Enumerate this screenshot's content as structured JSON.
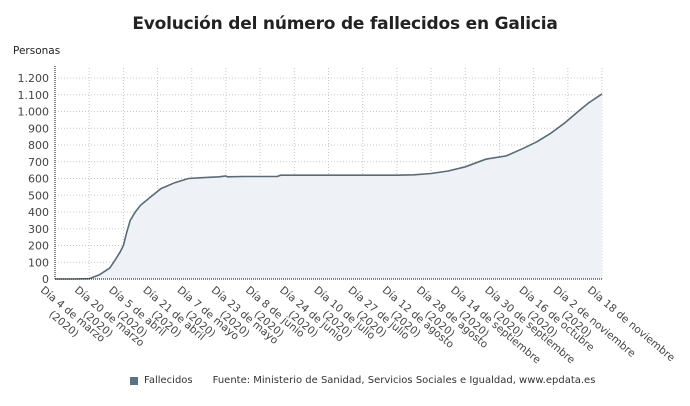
{
  "header": {
    "title": "Evolución del número de fallecidos en Galicia",
    "y_unit": "Personas"
  },
  "legend": {
    "series_label": "Fallecidos",
    "series_color": "#5b7186",
    "source": "Fuente: Ministerio de Sanidad, Servicios Sociales e Igualdad, www.epdata.es"
  },
  "colors": {
    "line": "#5a6b76",
    "fill": "#eef2f6",
    "grid": "#c8c8c8",
    "axis": "#333333"
  },
  "chart_data": {
    "type": "area",
    "title": "Evolución del número de fallecidos en Galicia",
    "xlabel": "",
    "ylabel": "Personas",
    "ylim": [
      0,
      1200
    ],
    "yticks": [
      0,
      100,
      200,
      300,
      400,
      500,
      600,
      700,
      800,
      900,
      1000,
      1100,
      1200
    ],
    "ytick_labels": [
      "0",
      "100",
      "200",
      "300",
      "400",
      "500",
      "600",
      "700",
      "800",
      "900",
      "1.000",
      "1.100",
      "1.200"
    ],
    "grid": true,
    "legend_position": "bottom",
    "categories": [
      "Día 4 de marzo (2020)",
      "Día 20 de marzo (2020)",
      "Día 5 de abril (2020)",
      "Día 21 de abril (2020)",
      "Día 7 de mayo (2020)",
      "Día 23 de mayo (2020)",
      "Día 8 de junio (2020)",
      "Día 24 de junio (2020)",
      "Día 10 de julio (2020)",
      "Día 27 de julio (2020)",
      "Día 12 de agosto (2020)",
      "Día 28 de agosto (2020)",
      "Día 14 de septiembre (2020)",
      "Día 30 de septiembre (2020)",
      "Día 16 de octubre (2020)",
      "Día 2 de noviembre (2020)",
      "Día 18 de noviembre"
    ],
    "x_tick_labels": [
      [
        "Día 4 de marzo",
        "(2020)"
      ],
      [
        "Día 20 de marzo",
        "(2020)"
      ],
      [
        "Día 5 de abril",
        "(2020)"
      ],
      [
        "Día 21 de abril",
        "(2020)"
      ],
      [
        "Día 7 de mayo",
        "(2020)"
      ],
      [
        "Día 23 de mayo",
        "(2020)"
      ],
      [
        "Día 8 de junio",
        "(2020)"
      ],
      [
        "Día 24 de junio",
        "(2020)"
      ],
      [
        "Día 10 de julio",
        "(2020)"
      ],
      [
        "Día 27 de julio",
        "(2020)"
      ],
      [
        "Día 12 de agosto",
        "(2020)"
      ],
      [
        "Día 28 de agosto",
        "(2020)"
      ],
      [
        "Día 14 de septiembre",
        "(2020)"
      ],
      [
        "Día 30 de septiembre",
        "(2020)"
      ],
      [
        "Día 16 de octubre",
        "(2020)"
      ],
      [
        "Día 2 de noviembre",
        "(2020)"
      ],
      [
        "Día 18 de noviembre"
      ]
    ],
    "series": [
      {
        "name": "Fallecidos",
        "x": [
          0,
          0.5,
          1.0,
          1.3,
          1.6,
          1.75,
          1.9,
          2.0,
          2.1,
          2.2,
          2.35,
          2.5,
          2.8,
          3.1,
          3.5,
          3.9,
          4.3,
          4.8,
          5.0,
          5.05,
          5.5,
          6.0,
          6.5,
          6.6,
          7.0,
          8.0,
          9.0,
          10.0,
          10.5,
          11.0,
          11.5,
          12.0,
          12.6,
          13.2,
          13.7,
          14.1,
          14.5,
          14.9,
          15.3,
          15.6,
          16.0
        ],
        "values": [
          0,
          0,
          2,
          25,
          65,
          110,
          160,
          200,
          280,
          350,
          400,
          440,
          490,
          540,
          575,
          600,
          605,
          610,
          615,
          610,
          612,
          612,
          612,
          620,
          620,
          620,
          620,
          620,
          622,
          630,
          645,
          670,
          715,
          735,
          780,
          820,
          870,
          930,
          1000,
          1050,
          1105
        ]
      }
    ]
  }
}
